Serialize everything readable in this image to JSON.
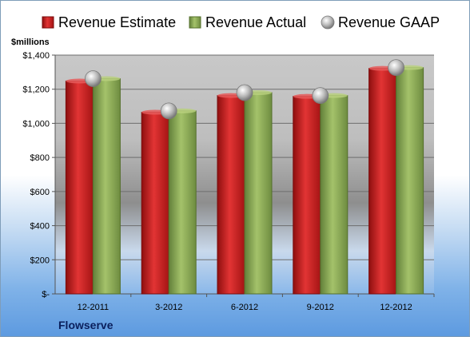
{
  "company": "Flowserve",
  "chart_data": {
    "type": "bar",
    "unit_label": "$millions",
    "categories": [
      "12-2011",
      "3-2012",
      "6-2012",
      "9-2012",
      "12-2012"
    ],
    "series": [
      {
        "name": "Revenue Estimate",
        "kind": "bar",
        "color": "#cc1f1f",
        "values": [
          1248,
          1065,
          1163,
          1158,
          1322
        ]
      },
      {
        "name": "Revenue Actual",
        "kind": "bar",
        "color": "#8fae54",
        "values": [
          1262,
          1073,
          1180,
          1163,
          1327
        ]
      },
      {
        "name": "Revenue GAAP",
        "kind": "marker",
        "color": "#c0c0c0",
        "values": [
          1262,
          1073,
          1180,
          1163,
          1327
        ]
      }
    ],
    "ylim": [
      0,
      1400
    ],
    "yticks": [
      0,
      200,
      400,
      600,
      800,
      1000,
      1200,
      1400
    ],
    "ytick_labels": [
      "$-",
      "$200",
      "$400",
      "$600",
      "$800",
      "$1,000",
      "$1,200",
      "$1,400"
    ],
    "grid": true,
    "legend": "top"
  }
}
